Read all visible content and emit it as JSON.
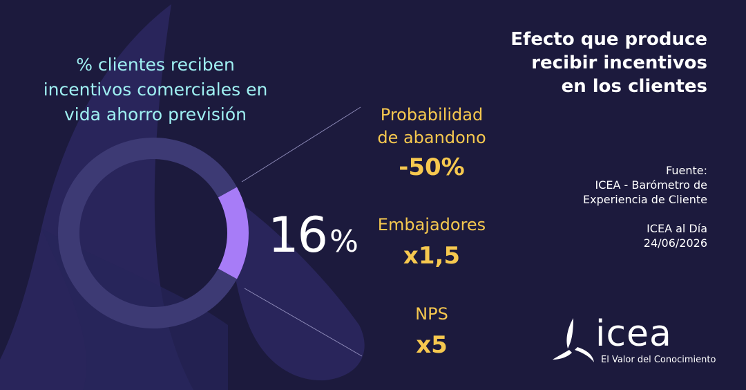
{
  "left_chart": {
    "title_lines": [
      "% clientes reciben",
      "incentivos comerciales en",
      "vida ahorro previsión"
    ],
    "percent_value": "16",
    "percent_symbol": "%"
  },
  "chart_data": {
    "type": "pie",
    "title": "% clientes reciben incentivos comerciales en vida ahorro previsión",
    "categories": [
      "reciben incentivos",
      "resto"
    ],
    "values": [
      16,
      84
    ],
    "colors": {
      "highlight": "#a77cf7",
      "rest": "#3d3a74"
    },
    "labels": [
      "16%"
    ]
  },
  "effects": {
    "title_lines": [
      "Efecto que produce",
      "recibir incentivos",
      "en los clientes"
    ],
    "items": [
      {
        "label_lines": [
          "Probabilidad",
          "de abandono"
        ],
        "value": "-50%"
      },
      {
        "label_lines": [
          "Embajadores"
        ],
        "value": "x1,5"
      },
      {
        "label_lines": [
          "NPS"
        ],
        "value": "x5"
      }
    ]
  },
  "source": {
    "lines": [
      "Fuente:",
      "ICEA - Barómetro de",
      "Experiencia de Cliente"
    ],
    "date_lines": [
      "ICEA al Día",
      "24/06/2026"
    ]
  },
  "logo": {
    "name": "icea",
    "tagline": "El Valor del Conocimiento"
  },
  "colors": {
    "background": "#1c1a3d",
    "title_left": "#9ff0f2",
    "accent_yellow": "#f6c84f",
    "text_white": "#ffffff"
  }
}
